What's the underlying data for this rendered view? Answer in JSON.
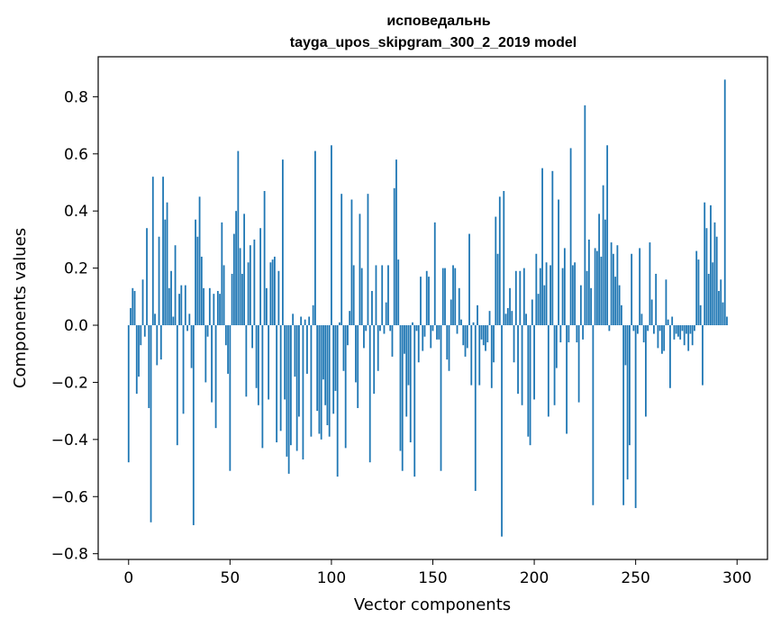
{
  "chart_data": {
    "type": "bar",
    "title": "исповедальнь",
    "subtitle": "tayga_upos_skipgram_300_2_2019 model",
    "xlabel": "Vector components",
    "ylabel": "Components values",
    "xlim": [
      -15,
      315
    ],
    "ylim": [
      -0.82,
      0.94
    ],
    "xticks": [
      0,
      50,
      100,
      150,
      200,
      250,
      300
    ],
    "yticks": [
      -0.8,
      -0.6,
      -0.4,
      -0.2,
      0.0,
      0.2,
      0.4,
      0.6,
      0.8
    ],
    "ytick_labels": [
      "−0.8",
      "−0.6",
      "−0.4",
      "−0.2",
      "0.0",
      "0.2",
      "0.4",
      "0.6",
      "0.8"
    ],
    "grid": false,
    "bar_color": "#1f77b4",
    "values": [
      -0.48,
      0.06,
      0.13,
      0.12,
      -0.24,
      -0.18,
      -0.07,
      0.16,
      -0.04,
      0.34,
      -0.29,
      -0.69,
      0.52,
      0.04,
      -0.14,
      0.31,
      -0.12,
      0.52,
      0.37,
      0.43,
      0.13,
      0.19,
      0.03,
      0.28,
      -0.42,
      0.11,
      0.14,
      -0.31,
      0.14,
      -0.02,
      0.04,
      -0.15,
      -0.7,
      0.37,
      0.31,
      0.45,
      0.24,
      0.13,
      -0.2,
      -0.04,
      0.13,
      -0.27,
      0.11,
      -0.36,
      0.12,
      0.11,
      0.36,
      0.21,
      -0.07,
      -0.17,
      -0.51,
      0.18,
      0.32,
      0.4,
      0.61,
      0.27,
      0.18,
      0.39,
      -0.25,
      0.22,
      0.28,
      -0.08,
      0.3,
      -0.22,
      -0.28,
      0.34,
      -0.43,
      0.47,
      0.13,
      -0.26,
      0.22,
      0.23,
      0.24,
      -0.41,
      0.19,
      -0.37,
      0.58,
      -0.26,
      -0.46,
      -0.52,
      -0.42,
      0.04,
      -0.18,
      -0.44,
      -0.32,
      0.03,
      -0.47,
      0.02,
      -0.17,
      0.03,
      -0.39,
      0.07,
      0.61,
      -0.3,
      -0.38,
      -0.4,
      -0.19,
      -0.28,
      -0.35,
      -0.39,
      0.63,
      -0.31,
      -0.23,
      -0.53,
      0.01,
      0.46,
      -0.16,
      -0.43,
      -0.07,
      0.05,
      0.44,
      0.21,
      -0.2,
      -0.29,
      0.39,
      0.2,
      -0.08,
      -0.02,
      0.46,
      -0.48,
      0.12,
      -0.24,
      0.21,
      -0.16,
      -0.02,
      0.21,
      -0.03,
      0.08,
      0.21,
      -0.02,
      -0.11,
      0.48,
      0.58,
      0.23,
      -0.44,
      -0.51,
      -0.1,
      -0.32,
      -0.21,
      -0.41,
      0.01,
      -0.53,
      -0.02,
      -0.13,
      0.17,
      -0.09,
      -0.04,
      0.19,
      0.17,
      -0.08,
      -0.02,
      0.36,
      -0.05,
      -0.05,
      -0.51,
      0.2,
      0.2,
      -0.12,
      -0.16,
      0.09,
      0.21,
      0.2,
      -0.03,
      0.13,
      0.02,
      -0.07,
      -0.11,
      -0.08,
      0.32,
      -0.21,
      0.01,
      -0.58,
      0.07,
      -0.21,
      -0.05,
      -0.07,
      -0.09,
      -0.06,
      0.05,
      -0.22,
      -0.13,
      0.38,
      0.25,
      0.45,
      -0.74,
      0.47,
      0.04,
      0.06,
      0.13,
      0.05,
      -0.13,
      0.19,
      -0.24,
      0.19,
      -0.28,
      0.2,
      0.04,
      -0.39,
      -0.42,
      0.09,
      -0.26,
      0.25,
      0.11,
      0.2,
      0.55,
      0.14,
      0.22,
      -0.32,
      0.21,
      0.54,
      -0.28,
      -0.15,
      0.44,
      -0.06,
      0.2,
      0.27,
      -0.38,
      -0.06,
      0.62,
      0.21,
      0.22,
      -0.06,
      -0.27,
      0.14,
      -0.05,
      0.77,
      0.19,
      0.3,
      0.13,
      -0.63,
      0.27,
      0.26,
      0.39,
      0.24,
      0.49,
      0.37,
      0.63,
      -0.02,
      0.29,
      0.25,
      0.17,
      0.28,
      0.14,
      0.07,
      -0.63,
      -0.14,
      -0.54,
      -0.42,
      0.25,
      -0.02,
      -0.64,
      -0.03,
      0.27,
      0.04,
      -0.06,
      -0.32,
      -0.02,
      0.29,
      0.09,
      -0.03,
      0.18,
      -0.08,
      -0.02,
      -0.1,
      -0.09,
      0.16,
      0.02,
      -0.22,
      0.03,
      -0.05,
      -0.03,
      -0.04,
      -0.05,
      -0.02,
      -0.07,
      -0.03,
      -0.09,
      -0.03,
      -0.07,
      -0.02,
      0.26,
      0.23,
      0.07,
      -0.21,
      0.43,
      0.34,
      0.18,
      0.42,
      0.22,
      0.36,
      0.31,
      0.12,
      0.16,
      0.08,
      0.86,
      0.03
    ]
  }
}
